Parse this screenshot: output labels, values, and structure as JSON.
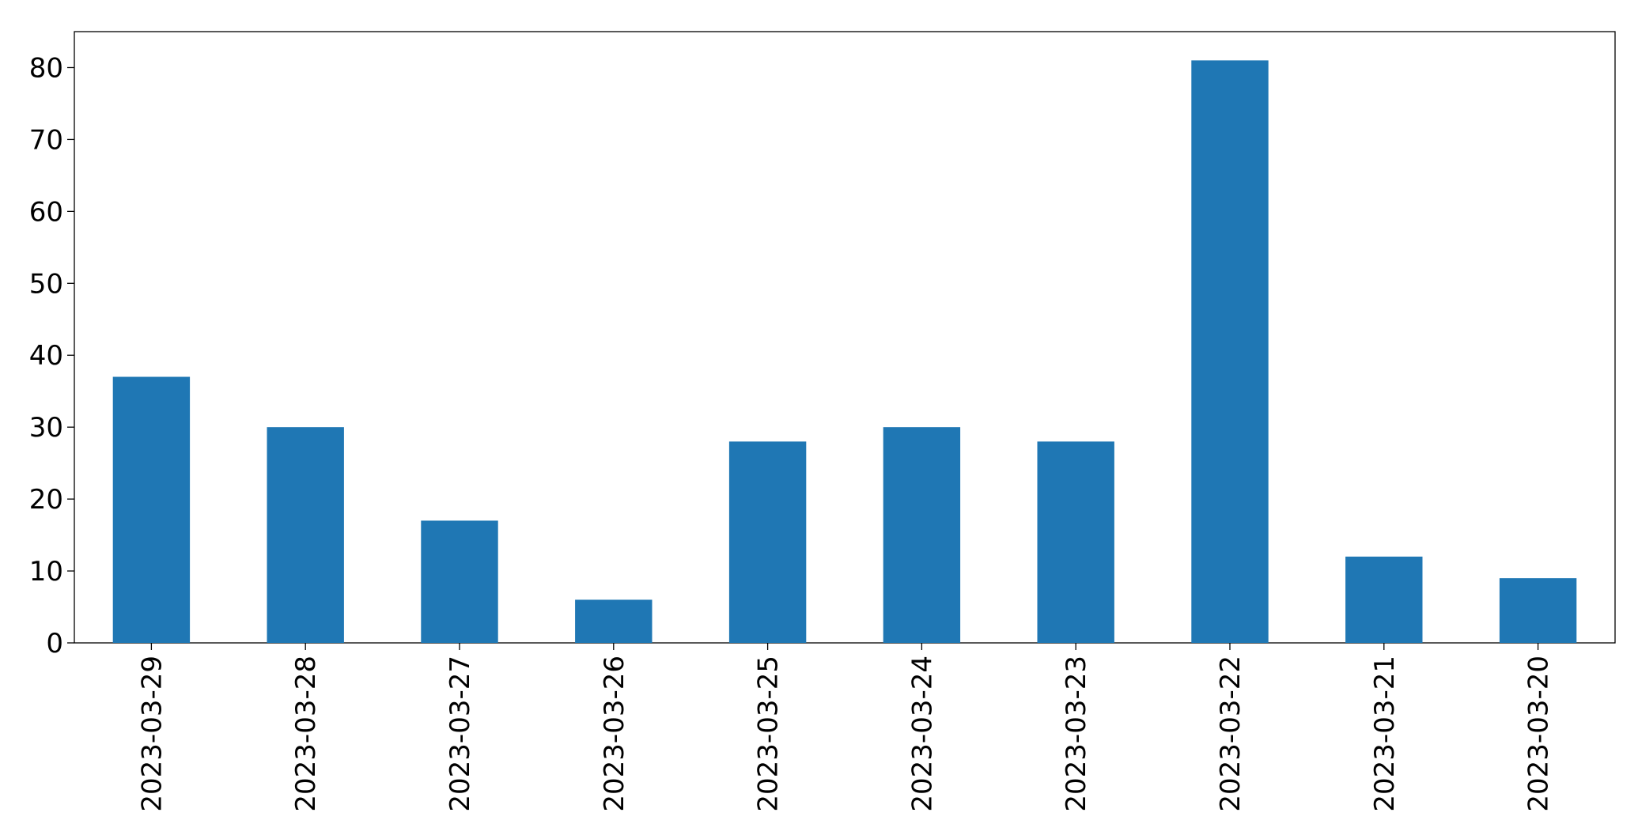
{
  "chart_data": {
    "type": "bar",
    "categories": [
      "2023-03-29",
      "2023-03-28",
      "2023-03-27",
      "2023-03-26",
      "2023-03-25",
      "2023-03-24",
      "2023-03-23",
      "2023-03-22",
      "2023-03-21",
      "2023-03-20"
    ],
    "values": [
      37,
      30,
      17,
      6,
      28,
      30,
      28,
      81,
      12,
      9
    ],
    "color": "#1f77b4",
    "ylim": [
      0,
      85
    ],
    "yticks": [
      0,
      10,
      20,
      30,
      40,
      50,
      60,
      70,
      80
    ],
    "grid": false
  }
}
